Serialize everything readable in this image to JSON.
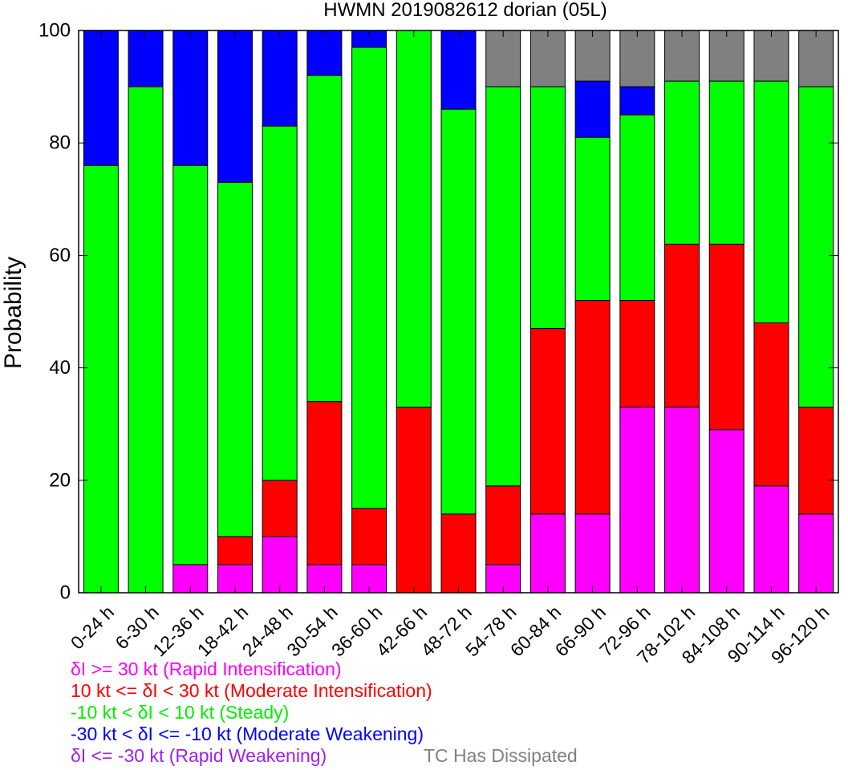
{
  "chart_data": {
    "type": "bar",
    "stacked": true,
    "title": "HWMN 2019082612 dorian (05L)",
    "ylabel": "Probability",
    "ylim": [
      0,
      100
    ],
    "yticks": [
      "0",
      "20",
      "40",
      "60",
      "80",
      "100"
    ],
    "categories": [
      "0-24 h",
      "6-30 h",
      "12-36 h",
      "18-42 h",
      "24-48 h",
      "30-54 h",
      "36-60 h",
      "42-66 h",
      "48-72 h",
      "54-78 h",
      "60-84 h",
      "66-90 h",
      "72-96 h",
      "78-102 h",
      "84-108 h",
      "90-114 h",
      "96-120 h"
    ],
    "series": [
      {
        "name": "δI >= 30 kt (Rapid Intensification)",
        "color": "#ff00ff",
        "values": [
          0,
          0,
          5,
          5,
          10,
          5,
          5,
          0,
          0,
          5,
          14,
          14,
          33,
          33,
          29,
          19,
          14
        ]
      },
      {
        "name": "10 kt <= δI < 30 kt (Moderate Intensification)",
        "color": "#ff0000",
        "values": [
          0,
          0,
          0,
          5,
          10,
          29,
          10,
          33,
          14,
          14,
          33,
          38,
          19,
          29,
          33,
          29,
          19
        ]
      },
      {
        "name": "-10 kt < δI < 10 kt (Steady)",
        "color": "#00ff00",
        "values": [
          76,
          90,
          71,
          63,
          63,
          58,
          82,
          67,
          72,
          71,
          43,
          29,
          33,
          29,
          29,
          43,
          57
        ]
      },
      {
        "name": "-30 kt < δI <= -10 kt (Moderate Weakening)",
        "color": "#0000ff",
        "values": [
          24,
          10,
          24,
          27,
          17,
          8,
          3,
          0,
          14,
          0,
          0,
          10,
          5,
          0,
          0,
          0,
          0
        ]
      },
      {
        "name": "δI <= -30 kt (Rapid Weakening)",
        "color": "#a020f0",
        "values": [
          0,
          0,
          0,
          0,
          0,
          0,
          0,
          0,
          0,
          0,
          0,
          0,
          0,
          0,
          0,
          0,
          0
        ]
      },
      {
        "name": "TC Has Dissipated",
        "color": "#808080",
        "values": [
          0,
          0,
          0,
          0,
          0,
          0,
          0,
          0,
          0,
          10,
          10,
          9,
          10,
          9,
          9,
          9,
          10
        ]
      }
    ],
    "legend_position": "bottom-left",
    "grid": false
  }
}
